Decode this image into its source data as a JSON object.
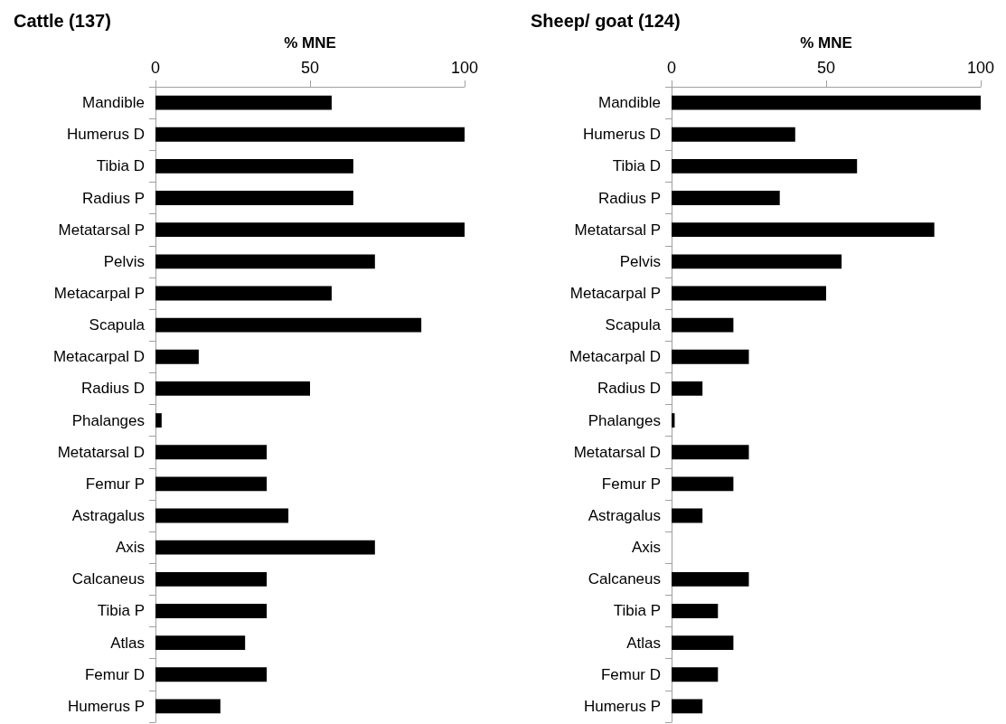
{
  "chart_data": [
    {
      "type": "bar",
      "orientation": "horizontal",
      "title": "Cattle (137)",
      "xlabel": "% MNE",
      "categories": [
        "Mandible",
        "Humerus D",
        "Tibia D",
        "Radius P",
        "Metatarsal P",
        "Pelvis",
        "Metacarpal P",
        "Scapula",
        "Metacarpal D",
        "Radius D",
        "Phalanges",
        "Metatarsal D",
        "Femur P",
        "Astragalus",
        "Axis",
        "Calcaneus",
        "Tibia P",
        "Atlas",
        "Femur D",
        "Humerus P"
      ],
      "values": [
        57,
        100,
        64,
        64,
        100,
        71,
        57,
        86,
        14,
        50,
        2,
        36,
        36,
        43,
        71,
        36,
        36,
        29,
        36,
        21
      ],
      "color": "#000000",
      "xlim": [
        0,
        100
      ],
      "xticks": [
        0,
        50,
        100
      ]
    },
    {
      "type": "bar",
      "orientation": "horizontal",
      "title": "Sheep/ goat (124)",
      "xlabel": "% MNE",
      "categories": [
        "Mandible",
        "Humerus D",
        "Tibia D",
        "Radius P",
        "Metatarsal P",
        "Pelvis",
        "Metacarpal P",
        "Scapula",
        "Metacarpal D",
        "Radius D",
        "Phalanges",
        "Metatarsal D",
        "Femur P",
        "Astragalus",
        "Axis",
        "Calcaneus",
        "Tibia P",
        "Atlas",
        "Femur D",
        "Humerus P"
      ],
      "values": [
        100,
        40,
        60,
        35,
        85,
        55,
        50,
        20,
        25,
        10,
        1,
        25,
        20,
        10,
        0,
        25,
        15,
        20,
        15,
        10
      ],
      "color": "#000000",
      "xlim": [
        0,
        100
      ],
      "xticks": [
        0,
        50,
        100
      ]
    }
  ]
}
